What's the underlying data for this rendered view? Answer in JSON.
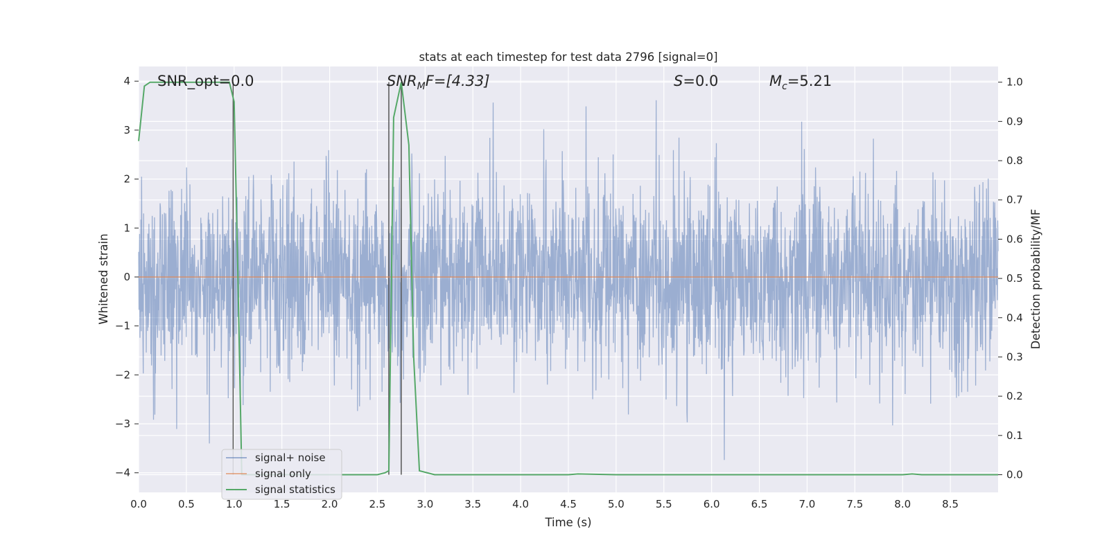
{
  "chart_data": {
    "type": "line",
    "title": "stats at each timestep for test data 2796 [signal=0]",
    "xlabel": "Time (s)",
    "ylabel_left": "Whitened strain",
    "ylabel_right": "Detection probability/MF",
    "xlim": [
      0.0,
      9.0
    ],
    "ylim_left": [
      -4.4,
      4.3
    ],
    "ylim_right": [
      -0.045,
      1.04
    ],
    "x_ticks": [
      "0.0",
      "0.5",
      "1.0",
      "1.5",
      "2.0",
      "2.5",
      "3.0",
      "3.5",
      "4.0",
      "4.5",
      "5.0",
      "5.5",
      "6.0",
      "6.5",
      "7.0",
      "7.5",
      "8.0",
      "8.5"
    ],
    "y_ticks_left": [
      "−4",
      "−3",
      "−2",
      "−1",
      "0",
      "1",
      "2",
      "3",
      "4"
    ],
    "y_ticks_right": [
      "0.0",
      "0.1",
      "0.2",
      "0.3",
      "0.4",
      "0.5",
      "0.6",
      "0.7",
      "0.8",
      "0.9",
      "1.0"
    ],
    "grid": true,
    "legend_position": "lower-left",
    "annotations": {
      "snr_opt": "SNR_opt=0.0",
      "snr_mf_italic": "SNR",
      "snr_mf_sub": "M",
      "snr_mf_after": "F=[4.33]",
      "s_italic": "S",
      "s_rest": "=0.0",
      "mc_italic": "M",
      "mc_sub": "c",
      "mc_rest": "=5.21"
    },
    "vertical_lines_s": [
      0.99,
      2.62,
      2.75
    ],
    "series": [
      {
        "name": "signal+ noise",
        "color": "#4c72b0",
        "axis": "left",
        "description_levels": {
          "typical_peak": 2.6,
          "max_peak": 3.9,
          "min_trough": -4.0
        }
      },
      {
        "name": "signal only",
        "color": "#dd8452",
        "axis": "left",
        "x": [
          0.0,
          9.0
        ],
        "values": [
          0.0,
          0.0
        ]
      },
      {
        "name": "signal statistics",
        "color": "#55a868",
        "axis": "right",
        "x": [
          0.0,
          0.06,
          0.12,
          0.2,
          0.3,
          0.5,
          0.7,
          0.9,
          0.95,
          1.0,
          1.04,
          1.08,
          1.2,
          1.5,
          2.0,
          2.5,
          2.58,
          2.62,
          2.67,
          2.75,
          2.83,
          2.88,
          2.94,
          3.1,
          3.5,
          4.0,
          4.5,
          4.6,
          5.0,
          6.0,
          7.0,
          8.0,
          8.1,
          8.2,
          9.0
        ],
        "values": [
          0.85,
          0.99,
          1.0,
          1.0,
          1.0,
          1.0,
          1.0,
          1.0,
          1.0,
          0.95,
          0.5,
          0.0,
          0.0,
          0.0,
          0.0,
          0.0,
          0.005,
          0.01,
          0.91,
          1.0,
          0.84,
          0.3,
          0.01,
          0.0,
          0.0,
          0.0,
          0.0,
          0.002,
          0.0,
          0.0,
          0.0,
          0.0,
          0.002,
          0.0,
          0.0
        ]
      }
    ]
  }
}
